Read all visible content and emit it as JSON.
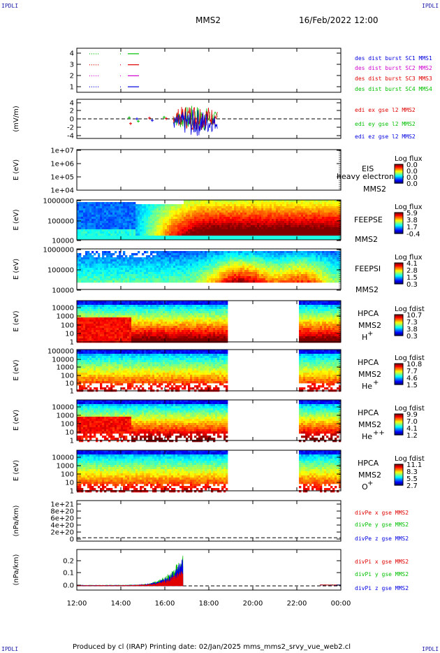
{
  "corner_labels": {
    "tl": "IPDLI",
    "tr": "IPDLI",
    "bl": "IPDLI",
    "br": "IPDLI"
  },
  "header": {
    "spacecraft": "MMS2",
    "date": "16/Feb/2022 12:00"
  },
  "footer": {
    "text": "Produced by cl (IRAP)   Printing date: 02/Jan/2025   mms_mms2_srvy_vue_web2.cl"
  },
  "colors": {
    "red": "#e00000",
    "green": "#00c000",
    "blue": "#0000e0",
    "magenta": "#d000d0"
  },
  "chart_data": {
    "type": "heatmap",
    "x_axis": {
      "ticks": [
        "12:00",
        "14:00",
        "16:00",
        "18:00",
        "20:00",
        "22:00",
        "00:00"
      ],
      "range_hours": [
        12,
        24
      ]
    },
    "panels": [
      {
        "id": "burst",
        "type": "line",
        "ylim": [
          0.5,
          4.5
        ],
        "yticks": [
          "1",
          "2",
          "3",
          "4"
        ],
        "legend": [
          {
            "text": "des dist burst SC1 MMS1",
            "color": "#0000e0"
          },
          {
            "text": "des dist burst SC2 MMS2",
            "color": "#d000d0"
          },
          {
            "text": "des dist burst SC3 MMS3",
            "color": "#e00000"
          },
          {
            "text": "des dist burst SC4 MMS4",
            "color": "#00c000"
          }
        ]
      },
      {
        "id": "edi",
        "type": "line",
        "ylabel": "(mV/m)",
        "ylim": [
          -5,
          5
        ],
        "yticks": [
          "4",
          "2",
          "0",
          "-2",
          "-4"
        ],
        "legend": [
          {
            "text": "edi ex gse l2 MMS2",
            "color": "#e00000"
          },
          {
            "text": "edi ey gse l2 MMS2",
            "color": "#00c000"
          },
          {
            "text": "edi ez gse l2 MMS2",
            "color": "#0000e0"
          }
        ]
      },
      {
        "id": "eis",
        "type": "heatmap",
        "ylabel": "E (eV)",
        "yticks": [
          "1e+07",
          "1e+06",
          "1e+05",
          "1e+04"
        ],
        "instrument": [
          "EIS",
          "MMS2"
        ],
        "overlay": "heavy electron to",
        "colorbar": {
          "title": "Log flux",
          "ticks": [
            "0.0",
            "0.0",
            "0.0",
            "0.0"
          ]
        }
      },
      {
        "id": "feepse",
        "type": "heatmap",
        "ylabel": "E (eV)",
        "yticks": [
          "1000000",
          "100000",
          "10000"
        ],
        "instrument": [
          "FEEPSE",
          "MMS2"
        ],
        "colorbar": {
          "title": "Log flux",
          "ticks": [
            "5.9",
            "3.8",
            "1.7",
            "-0.4"
          ]
        }
      },
      {
        "id": "feepsi",
        "type": "heatmap",
        "ylabel": "E (eV)",
        "yticks": [
          "1000000",
          "100000",
          "10000"
        ],
        "instrument": [
          "FEEPSI",
          "MMS2"
        ],
        "colorbar": {
          "title": "Log flux",
          "ticks": [
            "4.1",
            "2.8",
            "1.5",
            "0.3"
          ]
        }
      },
      {
        "id": "hpca_h",
        "type": "heatmap",
        "ylabel": "E (eV)",
        "yticks": [
          "10000",
          "1000",
          "100",
          "10",
          "1"
        ],
        "instrument": [
          "HPCA",
          "MMS2",
          "H",
          "+"
        ],
        "colorbar": {
          "title": "Log fdist",
          "ticks": [
            "10.7",
            "7.3",
            "3.8",
            "0.3"
          ]
        }
      },
      {
        "id": "hpca_he",
        "type": "heatmap",
        "ylabel": "E (eV)",
        "yticks": [
          "100000",
          "10000",
          "1000",
          "100",
          "10",
          "1"
        ],
        "instrument": [
          "HPCA",
          "MMS2",
          "He",
          "+"
        ],
        "colorbar": {
          "title": "Log fdist",
          "ticks": [
            "10.8",
            "7.7",
            "4.6",
            "1.5"
          ]
        }
      },
      {
        "id": "hpca_hepp",
        "type": "heatmap",
        "ylabel": "E (eV)",
        "yticks": [
          "10000",
          "1000",
          "100",
          "10",
          "1"
        ],
        "instrument": [
          "HPCA",
          "MMS2",
          "He",
          "++"
        ],
        "colorbar": {
          "title": "Log fdist",
          "ticks": [
            "9.9",
            "7.0",
            "4.1",
            "1.2"
          ]
        }
      },
      {
        "id": "hpca_o",
        "type": "heatmap",
        "ylabel": "E (eV)",
        "yticks": [
          "10000",
          "1000",
          "100",
          "10",
          "1"
        ],
        "instrument": [
          "HPCA",
          "MMS2",
          "O",
          "+"
        ],
        "colorbar": {
          "title": "Log fdist",
          "ticks": [
            "11.1",
            "8.3",
            "5.5",
            "2.7"
          ]
        }
      },
      {
        "id": "divpe",
        "type": "line",
        "ylabel": "(nPa/km)",
        "ylim": [
          -1e+20,
          1.1e+21
        ],
        "yticks": [
          "1e+21",
          "8e+20",
          "6e+20",
          "4e+20",
          "2e+20",
          "0"
        ],
        "legend": [
          {
            "text": "divPe x gse MMS2",
            "color": "#e00000"
          },
          {
            "text": "divPe y gse MMS2",
            "color": "#00c000"
          },
          {
            "text": "divPe z gse MMS2",
            "color": "#0000e0"
          }
        ]
      },
      {
        "id": "divpi",
        "type": "line",
        "ylabel": "(nPa/km)",
        "ylim": [
          -0.03,
          0.26
        ],
        "yticks": [
          "0.2",
          "0.1",
          "0.0"
        ],
        "legend": [
          {
            "text": "divPi x gse MMS2",
            "color": "#e00000"
          },
          {
            "text": "divPi y gse MMS2",
            "color": "#00c000"
          },
          {
            "text": "divPi z gse MMS2",
            "color": "#0000e0"
          }
        ]
      }
    ]
  }
}
